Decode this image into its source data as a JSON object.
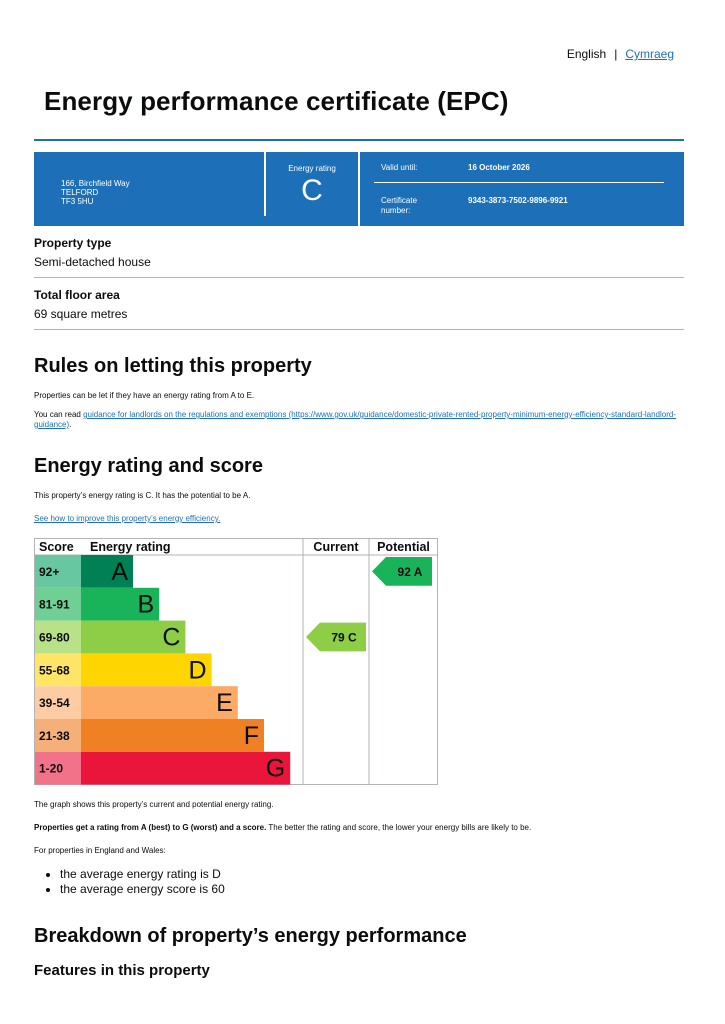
{
  "language": {
    "english": "English",
    "separator": "|",
    "welsh": "Cymraeg"
  },
  "title": "Energy performance certificate (EPC)",
  "banner": {
    "address": [
      "166, Birchfield Way",
      "TELFORD",
      "TF3 5HU"
    ],
    "energy_rating_label": "Energy rating",
    "energy_rating": "C",
    "valid_until_label": "Valid until:",
    "valid_until": "16 October 2026",
    "certificate_number_label": "Certificate number:",
    "certificate_number": "9343-3873-7502-9896-9921"
  },
  "property_type": {
    "label": "Property type",
    "value": "Semi-detached house"
  },
  "floor_area": {
    "label": "Total floor area",
    "value": "69 square metres"
  },
  "letting": {
    "heading": "Rules on letting this property",
    "para1": "Properties can be let if they have an energy rating from A to E.",
    "para2_prefix": "You can read ",
    "para2_link": "guidance for landlords on the regulations and exemptions",
    "para2_url": "(https://www.gov.uk/guidance/domestic-private-rented-property-minimum-energy-efficiency-standard-landlord-guidance)",
    "para2_suffix": "."
  },
  "rating_section": {
    "heading": "Energy rating and score",
    "summary": "This property’s energy rating is C. It has the potential to be A.",
    "improve_link": "See how to improve this property’s energy efficiency.",
    "graph_caption": "The graph shows this property’s current and potential energy rating.",
    "explain_bold": "Properties get a rating from A (best) to G (worst) and a score.",
    "explain_rest": " The better the rating and score, the lower your energy bills are likely to be.",
    "average_intro": "For properties in England and Wales:",
    "average_items": [
      "the average energy rating is D",
      "the average energy score is 60"
    ]
  },
  "chart_data": {
    "type": "table",
    "headers": {
      "score": "Score",
      "rating": "Energy rating",
      "current": "Current",
      "potential": "Potential"
    },
    "bands": [
      {
        "range": "92+",
        "letter": "A",
        "color": "#008054",
        "light": "#67c7a0"
      },
      {
        "range": "81-91",
        "letter": "B",
        "color": "#19b459",
        "light": "#70cf95"
      },
      {
        "range": "69-80",
        "letter": "C",
        "color": "#8dce46",
        "light": "#b9e288"
      },
      {
        "range": "55-68",
        "letter": "D",
        "color": "#ffd500",
        "light": "#ffe566"
      },
      {
        "range": "39-54",
        "letter": "E",
        "color": "#fcaa65",
        "light": "#fdcca3"
      },
      {
        "range": "21-38",
        "letter": "F",
        "color": "#ef8023",
        "light": "#f5b07a"
      },
      {
        "range": "1-20",
        "letter": "G",
        "color": "#e9153b",
        "light": "#f27289"
      }
    ],
    "current": {
      "score": 79,
      "letter": "C",
      "label": "79  C",
      "color": "#8dce46"
    },
    "potential": {
      "score": 92,
      "letter": "A",
      "label": "92  A",
      "color": "#19b459"
    }
  },
  "breakdown": {
    "heading": "Breakdown of property’s energy performance",
    "subheading": "Features in this property"
  }
}
